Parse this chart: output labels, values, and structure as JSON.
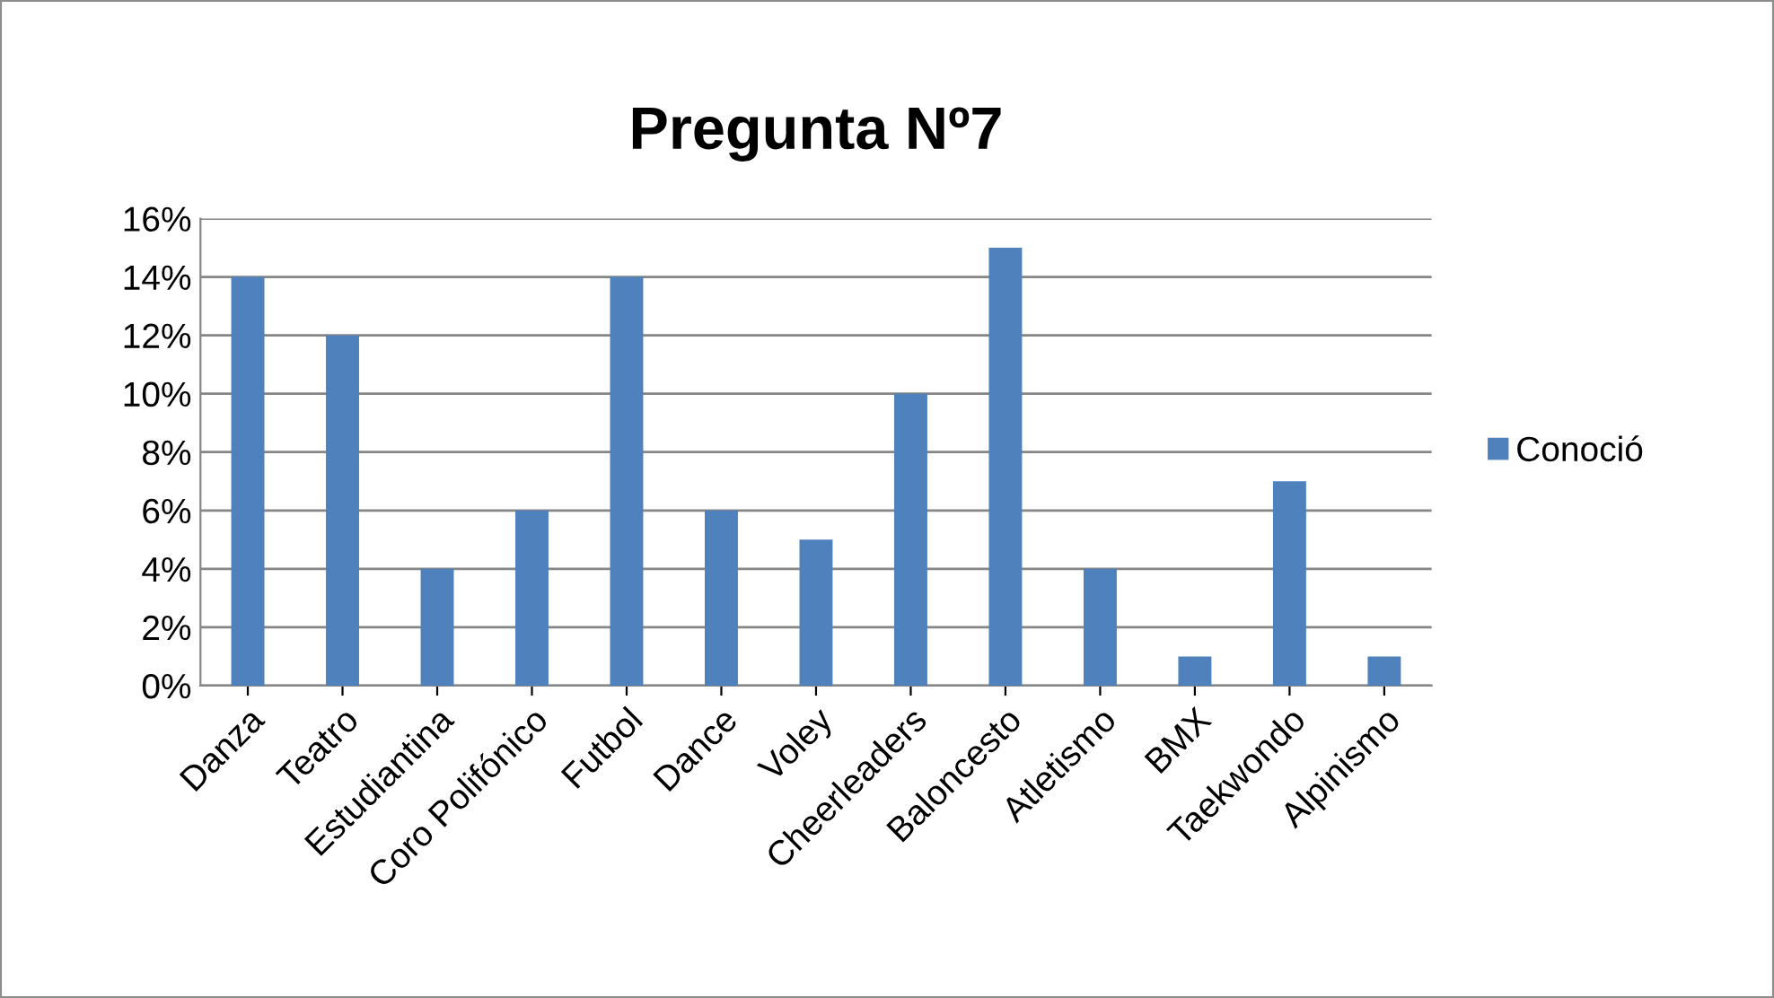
{
  "chart_data": {
    "type": "bar",
    "title": "Pregunta Nº7",
    "categories": [
      "Danza",
      "Teatro",
      "Estudiantina",
      "Coro Polifónico",
      "Futbol",
      "Dance",
      "Voley",
      "Cheerleaders",
      "Baloncesto",
      "Atletismo",
      "BMX",
      "Taekwondo",
      "Alpinismo"
    ],
    "series": [
      {
        "name": "Conoció",
        "color": "#4f81bd",
        "values": [
          14,
          12,
          4,
          6,
          14,
          6,
          5,
          10,
          15,
          4,
          1,
          7,
          1
        ]
      }
    ],
    "ylim": [
      0,
      16
    ],
    "yticks": [
      {
        "value": 0,
        "label": "0%"
      },
      {
        "value": 2,
        "label": "2%"
      },
      {
        "value": 4,
        "label": "4%"
      },
      {
        "value": 6,
        "label": "6%"
      },
      {
        "value": 8,
        "label": "8%"
      },
      {
        "value": 10,
        "label": "10%"
      },
      {
        "value": 12,
        "label": "12%"
      },
      {
        "value": 14,
        "label": "14%"
      },
      {
        "value": 16,
        "label": "16%"
      }
    ],
    "grid": "y",
    "legend": "right"
  }
}
